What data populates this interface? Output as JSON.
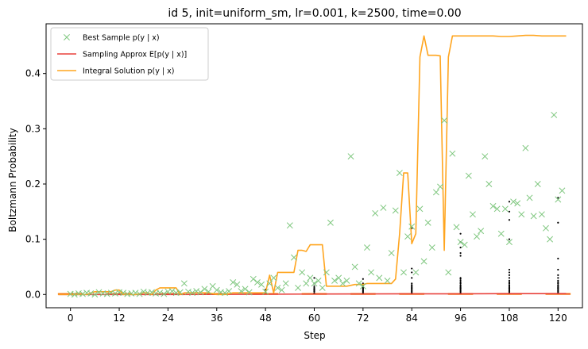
{
  "chart_data": {
    "type": "line",
    "title": "id 5, init=uniform_sm, lr=0.001, k=2500, time=0.00",
    "xlabel": "Step",
    "ylabel": "Boltzmann Probability",
    "xlim": [
      -6,
      126
    ],
    "ylim": [
      -0.024,
      0.49
    ],
    "xticks": [
      0,
      12,
      24,
      36,
      48,
      60,
      72,
      84,
      96,
      108,
      120
    ],
    "yticks": [
      0.0,
      0.1,
      0.2,
      0.3,
      0.4
    ],
    "ytick_labels": [
      "0.0",
      "0.1",
      "0.2",
      "0.3",
      "0.4"
    ],
    "grid": false,
    "legend_position": "top-left",
    "legend": [
      {
        "label": "Best Sample p(y | x)",
        "color": "#7fc77f",
        "marker": "x"
      },
      {
        "label": "Sampling Approx E[p(y | x)]",
        "color": "#e8413c",
        "marker": "line"
      },
      {
        "label": "Integral Solution p(y | x)",
        "color": "#ffa51f",
        "marker": "line"
      }
    ],
    "series": [
      {
        "name": "Integral Solution p(y | x)",
        "color": "#ffa51f",
        "x": [
          -3,
          0,
          2,
          4,
          6,
          8,
          10,
          11,
          12,
          13,
          14,
          16,
          18,
          19,
          20,
          21,
          22,
          23,
          24,
          26,
          27,
          28,
          30,
          32,
          34,
          36,
          38,
          40,
          42,
          44,
          46,
          47,
          48,
          49,
          50,
          51,
          52,
          53,
          54,
          55,
          56,
          57,
          58,
          59,
          60,
          61,
          62,
          63,
          64,
          66,
          68,
          70,
          72,
          73,
          74,
          76,
          78,
          79,
          80,
          81,
          82,
          83,
          84,
          85,
          86,
          87,
          88,
          90,
          91,
          92,
          93,
          94,
          96,
          98,
          100,
          102,
          104,
          106,
          108,
          110,
          112,
          114,
          116,
          118,
          120,
          122
        ],
        "y": [
          0.0,
          0.0,
          0.0,
          0.0,
          0.005,
          0.005,
          0.005,
          0.008,
          0.008,
          0.0,
          0.0,
          0.0,
          0.003,
          0.003,
          0.0,
          0.008,
          0.012,
          0.012,
          0.012,
          0.012,
          0.0,
          0.003,
          0.003,
          0.003,
          0.003,
          0.0,
          0.0,
          0.003,
          0.003,
          0.003,
          0.003,
          0.003,
          0.003,
          0.035,
          0.003,
          0.04,
          0.04,
          0.04,
          0.04,
          0.04,
          0.08,
          0.08,
          0.078,
          0.09,
          0.09,
          0.09,
          0.09,
          0.015,
          0.015,
          0.015,
          0.015,
          0.018,
          0.018,
          0.02,
          0.02,
          0.02,
          0.02,
          0.02,
          0.028,
          0.11,
          0.22,
          0.22,
          0.092,
          0.11,
          0.43,
          0.468,
          0.433,
          0.433,
          0.432,
          0.08,
          0.43,
          0.468,
          0.468,
          0.468,
          0.468,
          0.468,
          0.468,
          0.467,
          0.467,
          0.468,
          0.469,
          0.469,
          0.468,
          0.468,
          0.468,
          0.468
        ]
      },
      {
        "name": "Sampling Approx E[p(y | x)]",
        "color": "#e8413c",
        "x": [
          -3,
          24,
          48,
          60,
          72,
          84,
          96,
          108,
          120,
          122
        ],
        "y": [
          0.0,
          0.0,
          0.0005,
          0.0008,
          0.001,
          0.0012,
          0.0012,
          0.0015,
          0.0015,
          0.0015
        ]
      },
      {
        "name": "Best Sample p(y | x)",
        "color": "#7fc77f",
        "marker": "x",
        "x": [
          0,
          1,
          2,
          3,
          4,
          5,
          6,
          7,
          8,
          9,
          10,
          11,
          12,
          13,
          14,
          15,
          16,
          17,
          18,
          19,
          20,
          21,
          22,
          23,
          24,
          25,
          26,
          27,
          28,
          29,
          30,
          31,
          32,
          33,
          34,
          35,
          36,
          37,
          38,
          39,
          40,
          41,
          42,
          43,
          44,
          45,
          46,
          47,
          48,
          49,
          50,
          51,
          52,
          53,
          54,
          55,
          56,
          57,
          58,
          59,
          60,
          61,
          62,
          63,
          64,
          65,
          66,
          67,
          68,
          69,
          70,
          71,
          72,
          73,
          74,
          75,
          76,
          77,
          78,
          79,
          80,
          81,
          82,
          83,
          84,
          85,
          86,
          87,
          88,
          89,
          90,
          91,
          92,
          93,
          94,
          95,
          96,
          97,
          98,
          99,
          100,
          101,
          102,
          103,
          104,
          105,
          106,
          107,
          108,
          109,
          110,
          111,
          112,
          113,
          114,
          115,
          116,
          117,
          118,
          119,
          120,
          121
        ],
        "y": [
          0.001,
          0.0,
          0.002,
          0.001,
          0.003,
          0.002,
          0.0,
          0.004,
          0.002,
          0.001,
          0.003,
          0.002,
          0.004,
          0.003,
          0.001,
          0.002,
          0.003,
          0.001,
          0.005,
          0.003,
          0.004,
          0.002,
          0.003,
          0.001,
          0.005,
          0.006,
          0.003,
          0.004,
          0.02,
          0.005,
          0.003,
          0.006,
          0.004,
          0.01,
          0.005,
          0.015,
          0.008,
          0.004,
          0.003,
          0.006,
          0.022,
          0.018,
          0.006,
          0.01,
          0.004,
          0.028,
          0.022,
          0.018,
          0.005,
          0.02,
          0.03,
          0.012,
          0.008,
          0.02,
          0.125,
          0.067,
          0.012,
          0.04,
          0.02,
          0.03,
          0.02,
          0.025,
          0.012,
          0.04,
          0.13,
          0.025,
          0.03,
          0.02,
          0.025,
          0.25,
          0.05,
          0.02,
          0.015,
          0.085,
          0.04,
          0.147,
          0.03,
          0.157,
          0.025,
          0.075,
          0.152,
          0.22,
          0.04,
          0.105,
          0.123,
          0.04,
          0.155,
          0.06,
          0.13,
          0.085,
          0.185,
          0.195,
          0.315,
          0.04,
          0.255,
          0.122,
          0.095,
          0.09,
          0.215,
          0.145,
          0.105,
          0.115,
          0.25,
          0.2,
          0.16,
          0.155,
          0.11,
          0.155,
          0.095,
          0.168,
          0.165,
          0.145,
          0.265,
          0.175,
          0.142,
          0.2,
          0.145,
          0.12,
          0.1,
          0.325,
          0.172,
          0.188
        ]
      }
    ],
    "boxplots": {
      "color": "#ffa51f",
      "median_color": "#e8413c",
      "positions": [
        0,
        12,
        24,
        36,
        48,
        60,
        72,
        84,
        96,
        108,
        120
      ],
      "width": 6,
      "q1": 0.0,
      "q3": 0.002,
      "median": 0.001,
      "outliers": [
        {
          "x": 48,
          "y": [
            0.003,
            0.006,
            0.009
          ]
        },
        {
          "x": 60,
          "y": [
            0.003,
            0.006,
            0.008,
            0.01,
            0.012,
            0.015,
            0.02,
            0.03
          ]
        },
        {
          "x": 72,
          "y": [
            0.003,
            0.005,
            0.007,
            0.009,
            0.011,
            0.013,
            0.016,
            0.02,
            0.028
          ]
        },
        {
          "x": 84,
          "y": [
            0.003,
            0.005,
            0.007,
            0.009,
            0.011,
            0.013,
            0.015,
            0.017,
            0.02,
            0.03,
            0.04,
            0.047,
            0.12
          ]
        },
        {
          "x": 96,
          "y": [
            0.003,
            0.005,
            0.007,
            0.009,
            0.011,
            0.013,
            0.015,
            0.017,
            0.02,
            0.022,
            0.025,
            0.028,
            0.03,
            0.07,
            0.075,
            0.085,
            0.095,
            0.11
          ]
        },
        {
          "x": 108,
          "y": [
            0.003,
            0.005,
            0.007,
            0.009,
            0.011,
            0.013,
            0.015,
            0.017,
            0.02,
            0.022,
            0.025,
            0.03,
            0.035,
            0.04,
            0.045,
            0.1,
            0.135,
            0.15,
            0.168
          ]
        },
        {
          "x": 120,
          "y": [
            0.003,
            0.005,
            0.007,
            0.009,
            0.011,
            0.013,
            0.015,
            0.017,
            0.02,
            0.022,
            0.025,
            0.03,
            0.035,
            0.045,
            0.065,
            0.13,
            0.175
          ]
        }
      ]
    }
  }
}
